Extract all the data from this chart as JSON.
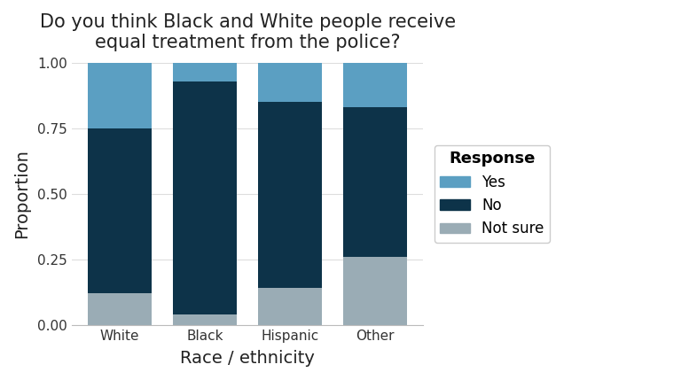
{
  "categories": [
    "White",
    "Black",
    "Hispanic",
    "Other"
  ],
  "not_sure": [
    0.12,
    0.04,
    0.14,
    0.26
  ],
  "no": [
    0.63,
    0.89,
    0.71,
    0.57
  ],
  "yes": [
    0.25,
    0.07,
    0.15,
    0.17
  ],
  "colors": {
    "yes": "#5b9fc2",
    "no": "#0d3349",
    "not_sure": "#9aacb5"
  },
  "title": "Do you think Black and White people receive\nequal treatment from the police?",
  "xlabel": "Race / ethnicity",
  "ylabel": "Proportion",
  "ylim": [
    0,
    1.0
  ],
  "yticks": [
    0.0,
    0.25,
    0.5,
    0.75,
    1.0
  ],
  "legend_title": "Response",
  "title_fontsize": 15,
  "axis_label_fontsize": 14,
  "tick_fontsize": 11,
  "legend_fontsize": 12,
  "legend_title_fontsize": 13,
  "bar_width": 0.75,
  "background_color": "#ffffff",
  "plot_bg_color": "#ffffff",
  "grid_color": "#dddddd"
}
